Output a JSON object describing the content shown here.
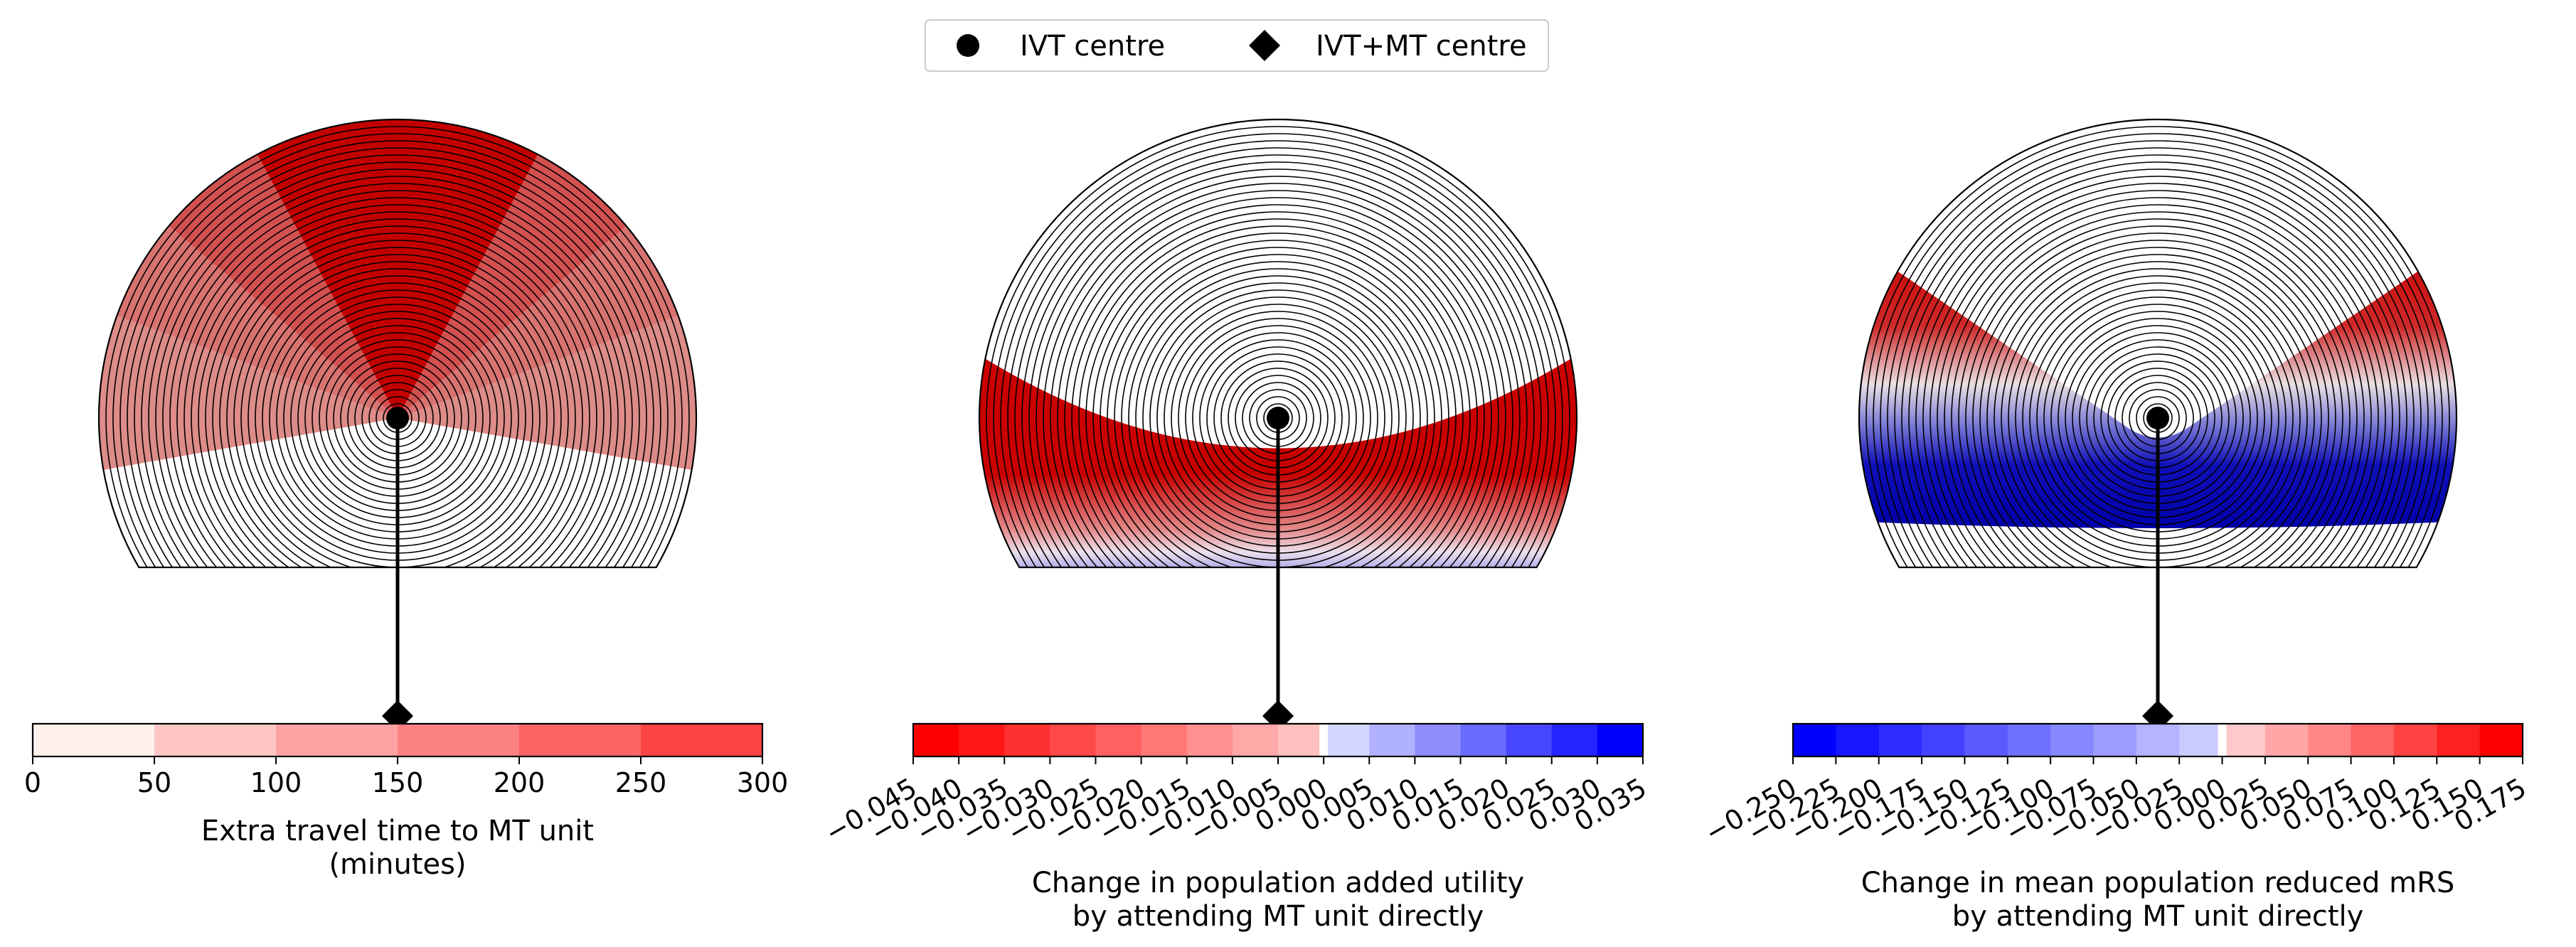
{
  "legend": {
    "items": [
      {
        "label": "IVT centre",
        "marker": "circle"
      },
      {
        "label": "IVT+MT centre",
        "marker": "diamond"
      }
    ]
  },
  "chart_data": [
    {
      "type": "heatmap",
      "title": "",
      "colormap": "whites-to-reds",
      "colorbar": {
        "label_lines": [
          "Extra travel time to MT unit",
          "(minutes)"
        ],
        "ticks": [
          "0",
          "50",
          "100",
          "150",
          "200",
          "250",
          "300"
        ],
        "range": [
          0,
          300
        ],
        "bin_colors": [
          "#fff0ec",
          "#fdc6c4",
          "#fca4a4",
          "#fc8282",
          "#fb6464",
          "#fb4444",
          "#fa1c1c"
        ]
      },
      "field": {
        "min_color": "#e6b3b0",
        "max_color": "#c20000"
      }
    },
    {
      "type": "heatmap",
      "title": "",
      "colormap": "red-white-blue",
      "colorbar": {
        "label_lines": [
          "Change in population added utility",
          "by attending MT unit directly"
        ],
        "ticks": [
          "−0.045",
          "−0.040",
          "−0.035",
          "−0.030",
          "−0.025",
          "−0.020",
          "−0.015",
          "−0.010",
          "−0.005",
          "0.000",
          "0.005",
          "0.010",
          "0.015",
          "0.020",
          "0.025",
          "0.030",
          "0.035"
        ],
        "range": [
          -0.045,
          0.035
        ],
        "zero_value": 0.0
      }
    },
    {
      "type": "heatmap",
      "title": "",
      "colormap": "blue-white-red",
      "colorbar": {
        "label_lines": [
          "Change in mean population reduced mRS",
          "by attending MT unit directly"
        ],
        "ticks": [
          "−0.250",
          "−0.225",
          "−0.200",
          "−0.175",
          "−0.150",
          "−0.125",
          "−0.100",
          "−0.075",
          "−0.050",
          "−0.025",
          "0.000",
          "0.025",
          "0.050",
          "0.075",
          "0.100",
          "0.125",
          "0.150",
          "0.175"
        ],
        "range": [
          -0.25,
          0.175
        ],
        "zero_value": 0.0
      }
    }
  ]
}
